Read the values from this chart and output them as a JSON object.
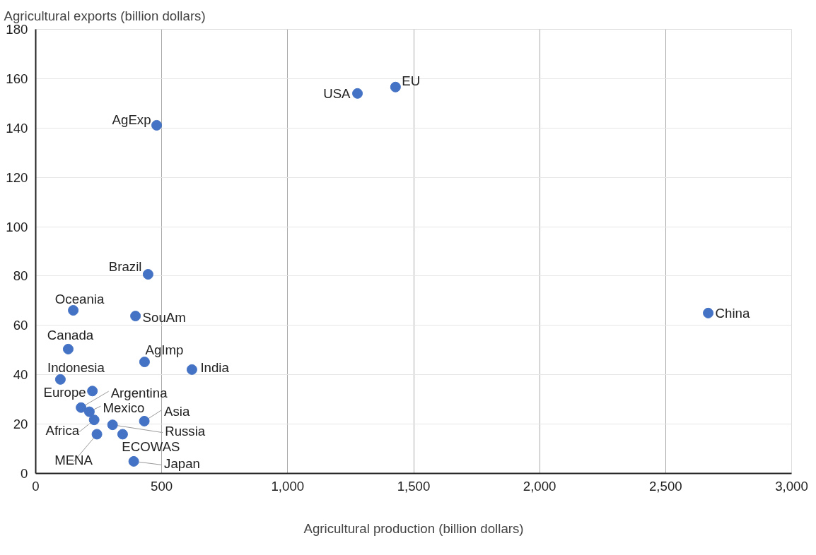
{
  "chart_data": {
    "type": "scatter",
    "xlabel": "Agricultural production (billion dollars)",
    "ylabel": "Agricultural exports (billion dollars)",
    "x": [
      1277,
      1428,
      480,
      446,
      149,
      396,
      2669,
      129,
      432,
      620,
      98,
      225,
      180,
      213,
      232,
      243,
      305,
      345,
      431,
      389
    ],
    "series": [
      {
        "color": "#4472c4",
        "values": [
          154.0,
          156.6,
          141.1,
          80.7,
          66.1,
          63.8,
          65.0,
          50.4,
          45.2,
          42.1,
          38.1,
          33.4,
          26.7,
          25.0,
          21.7,
          15.9,
          19.7,
          15.9,
          21.2,
          4.9
        ]
      }
    ],
    "annotations": [
      {
        "text": "USA",
        "x": 1277,
        "y": 154.0
      },
      {
        "text": "EU",
        "x": 1428,
        "y": 156.6
      },
      {
        "text": "AgExp",
        "x": 480,
        "y": 141.1
      },
      {
        "text": "Brazil",
        "x": 446,
        "y": 80.7
      },
      {
        "text": "Oceania",
        "x": 149,
        "y": 66.1
      },
      {
        "text": "SouAm",
        "x": 396,
        "y": 63.8
      },
      {
        "text": "China",
        "x": 2669,
        "y": 65.0
      },
      {
        "text": "Canada",
        "x": 129,
        "y": 50.4
      },
      {
        "text": "AgImp",
        "x": 432,
        "y": 45.2
      },
      {
        "text": "India",
        "x": 620,
        "y": 42.1
      },
      {
        "text": "Indonesia",
        "x": 98,
        "y": 38.1
      },
      {
        "text": "Europe",
        "x": 225,
        "y": 33.4
      },
      {
        "text": "Argentina",
        "x": 180,
        "y": 26.7
      },
      {
        "text": "Mexico",
        "x": 213,
        "y": 25.0
      },
      {
        "text": "Africa",
        "x": 232,
        "y": 21.7
      },
      {
        "text": "MENA",
        "x": 243,
        "y": 15.9
      },
      {
        "text": "Russia",
        "x": 305,
        "y": 19.7
      },
      {
        "text": "ECOWAS",
        "x": 345,
        "y": 15.9
      },
      {
        "text": "Asia",
        "x": 431,
        "y": 21.2
      },
      {
        "text": "Japan",
        "x": 389,
        "y": 4.9
      }
    ],
    "xlim": [
      0,
      3000
    ],
    "xticks": [
      0,
      {
        "value": 500,
        "label": "500"
      },
      {
        "value": 1000,
        "label": "1,000"
      },
      {
        "value": 1500,
        "label": "1,500"
      },
      {
        "value": 2000,
        "label": "2,000"
      },
      {
        "value": 2500,
        "label": "2,500"
      },
      {
        "value": 3000,
        "label": "3,000"
      }
    ],
    "ylim": [
      0,
      180
    ],
    "yticks": [
      0,
      20,
      40,
      60,
      80,
      100,
      120,
      140,
      160,
      180
    ],
    "grid": true,
    "marker": "circle"
  }
}
